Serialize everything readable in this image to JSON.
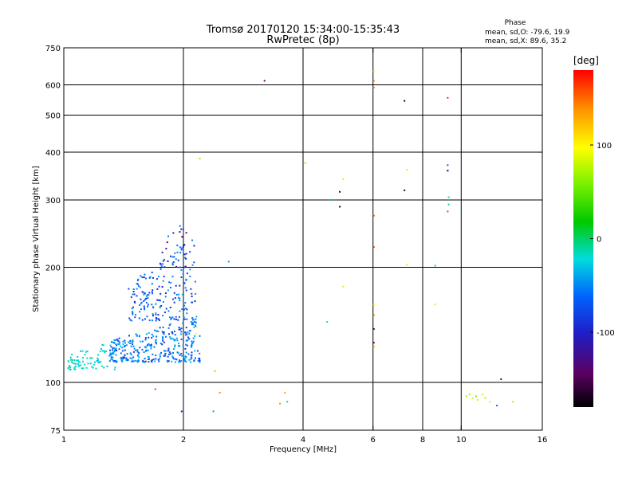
{
  "title": "Tromsø 20170120 15:34:00-15:35:43",
  "subtitle": "RwPretec (8p)",
  "phase_legend": {
    "heading": "Phase",
    "line_o": "mean, sd,O: -79.6, 19.9",
    "line_x": "mean, sd,X:  89.6, 35.2"
  },
  "colorbar": {
    "label": "[deg]",
    "range": [
      -180,
      180
    ],
    "ticks": [
      {
        "value": 100,
        "text": "100"
      },
      {
        "value": 0,
        "text": "0"
      },
      {
        "value": -100,
        "text": "-100"
      }
    ]
  },
  "chart_data": {
    "type": "scatter",
    "xlabel": "Frequency [MHz]",
    "ylabel": "Stationary phase Virtual Height [km]",
    "x_scale": "log",
    "y_scale": "log",
    "xlim": [
      1,
      16
    ],
    "ylim": [
      75,
      750
    ],
    "xticks": [
      {
        "value": 1,
        "text": "1"
      },
      {
        "value": 2,
        "text": "2"
      },
      {
        "value": 4,
        "text": "4"
      },
      {
        "value": 6,
        "text": "6"
      },
      {
        "value": 8,
        "text": "8"
      },
      {
        "value": 10,
        "text": "10"
      },
      {
        "value": 16,
        "text": "16"
      }
    ],
    "yticks": [
      {
        "value": 75,
        "text": "75"
      },
      {
        "value": 100,
        "text": "100"
      },
      {
        "value": 200,
        "text": "200"
      },
      {
        "value": 300,
        "text": "300"
      },
      {
        "value": 400,
        "text": "400"
      },
      {
        "value": 500,
        "text": "500"
      },
      {
        "value": 600,
        "text": "600"
      },
      {
        "value": 750,
        "text": "750"
      }
    ],
    "grid_x": [
      2,
      4,
      6,
      8,
      10
    ],
    "grid_y": [
      100,
      200,
      300,
      400,
      500,
      600
    ],
    "points": [
      {
        "x": 3.2,
        "y": 615,
        "phase": -150
      },
      {
        "x": 6.03,
        "y": 650,
        "phase": 110
      },
      {
        "x": 6.03,
        "y": 615,
        "phase": 150
      },
      {
        "x": 6.03,
        "y": 590,
        "phase": 150
      },
      {
        "x": 7.2,
        "y": 545,
        "phase": -170
      },
      {
        "x": 9.25,
        "y": 555,
        "phase": 170
      },
      {
        "x": 2.2,
        "y": 385,
        "phase": 50
      },
      {
        "x": 4.05,
        "y": 375,
        "phase": 50
      },
      {
        "x": 5.05,
        "y": 340,
        "phase": 110
      },
      {
        "x": 4.95,
        "y": 315,
        "phase": -170
      },
      {
        "x": 4.7,
        "y": 300,
        "phase": -40
      },
      {
        "x": 4.95,
        "y": 288,
        "phase": -170
      },
      {
        "x": 7.3,
        "y": 360,
        "phase": 110
      },
      {
        "x": 7.2,
        "y": 318,
        "phase": -170
      },
      {
        "x": 9.25,
        "y": 370,
        "phase": -100
      },
      {
        "x": 9.25,
        "y": 358,
        "phase": -170
      },
      {
        "x": 9.3,
        "y": 305,
        "phase": -50
      },
      {
        "x": 9.3,
        "y": 292,
        "phase": -40
      },
      {
        "x": 9.25,
        "y": 280,
        "phase": 160
      },
      {
        "x": 6.03,
        "y": 273,
        "phase": 160
      },
      {
        "x": 6.03,
        "y": 226,
        "phase": 165
      },
      {
        "x": 2.6,
        "y": 207,
        "phase": -80
      },
      {
        "x": 7.3,
        "y": 203,
        "phase": 110
      },
      {
        "x": 8.6,
        "y": 202,
        "phase": -50
      },
      {
        "x": 5.05,
        "y": 178,
        "phase": 110
      },
      {
        "x": 6.03,
        "y": 160,
        "phase": 110
      },
      {
        "x": 8.6,
        "y": 160,
        "phase": 110
      },
      {
        "x": 6.03,
        "y": 150,
        "phase": 150
      },
      {
        "x": 4.6,
        "y": 144,
        "phase": -60
      },
      {
        "x": 6.03,
        "y": 138,
        "phase": -160
      },
      {
        "x": 6.03,
        "y": 127,
        "phase": -150
      },
      {
        "x": 6.03,
        "y": 124,
        "phase": 140
      },
      {
        "x": 2.15,
        "y": 134,
        "phase": 100
      },
      {
        "x": 2.4,
        "y": 107,
        "phase": 130
      },
      {
        "x": 1.7,
        "y": 96,
        "phase": 165
      },
      {
        "x": 2.47,
        "y": 94,
        "phase": 140
      },
      {
        "x": 1.98,
        "y": 84,
        "phase": -120
      },
      {
        "x": 2.38,
        "y": 84,
        "phase": -80
      },
      {
        "x": 3.5,
        "y": 88,
        "phase": 140
      },
      {
        "x": 3.6,
        "y": 94,
        "phase": 130
      },
      {
        "x": 3.65,
        "y": 89,
        "phase": -40
      },
      {
        "x": 12.6,
        "y": 102,
        "phase": -150
      },
      {
        "x": 10.3,
        "y": 92,
        "phase": 50
      },
      {
        "x": 10.5,
        "y": 93,
        "phase": 60
      },
      {
        "x": 10.7,
        "y": 91,
        "phase": 80
      },
      {
        "x": 10.9,
        "y": 92,
        "phase": 40
      },
      {
        "x": 11.3,
        "y": 93,
        "phase": 110
      },
      {
        "x": 11.5,
        "y": 91,
        "phase": 60
      },
      {
        "x": 11.8,
        "y": 89,
        "phase": 80
      },
      {
        "x": 12.3,
        "y": 87,
        "phase": -100
      },
      {
        "x": 13.5,
        "y": 89,
        "phase": 120
      },
      {
        "x": 11.0,
        "y": 90,
        "phase": 80
      }
    ],
    "clusters": [
      {
        "note": "cyan O-trace",
        "x_range": [
          1.02,
          1.35
        ],
        "y_range": [
          108,
          130
        ],
        "phase_range": [
          -75,
          -40
        ],
        "count": 80,
        "seed": 11
      },
      {
        "note": "blue O-trace",
        "x_range": [
          1.3,
          2.2
        ],
        "y_range": [
          113,
          150
        ],
        "phase_range": [
          -115,
          -70
        ],
        "count": 330,
        "seed": 23
      },
      {
        "note": "upper blue spread",
        "x_range": [
          1.45,
          2.15
        ],
        "y_range": [
          145,
          240
        ],
        "phase_range": [
          -120,
          -80
        ],
        "count": 190,
        "seed": 37
      },
      {
        "note": "high tail",
        "x_range": [
          1.75,
          2.1
        ],
        "y_range": [
          200,
          275
        ],
        "phase_range": [
          -150,
          -90
        ],
        "count": 30,
        "seed": 41
      }
    ]
  }
}
